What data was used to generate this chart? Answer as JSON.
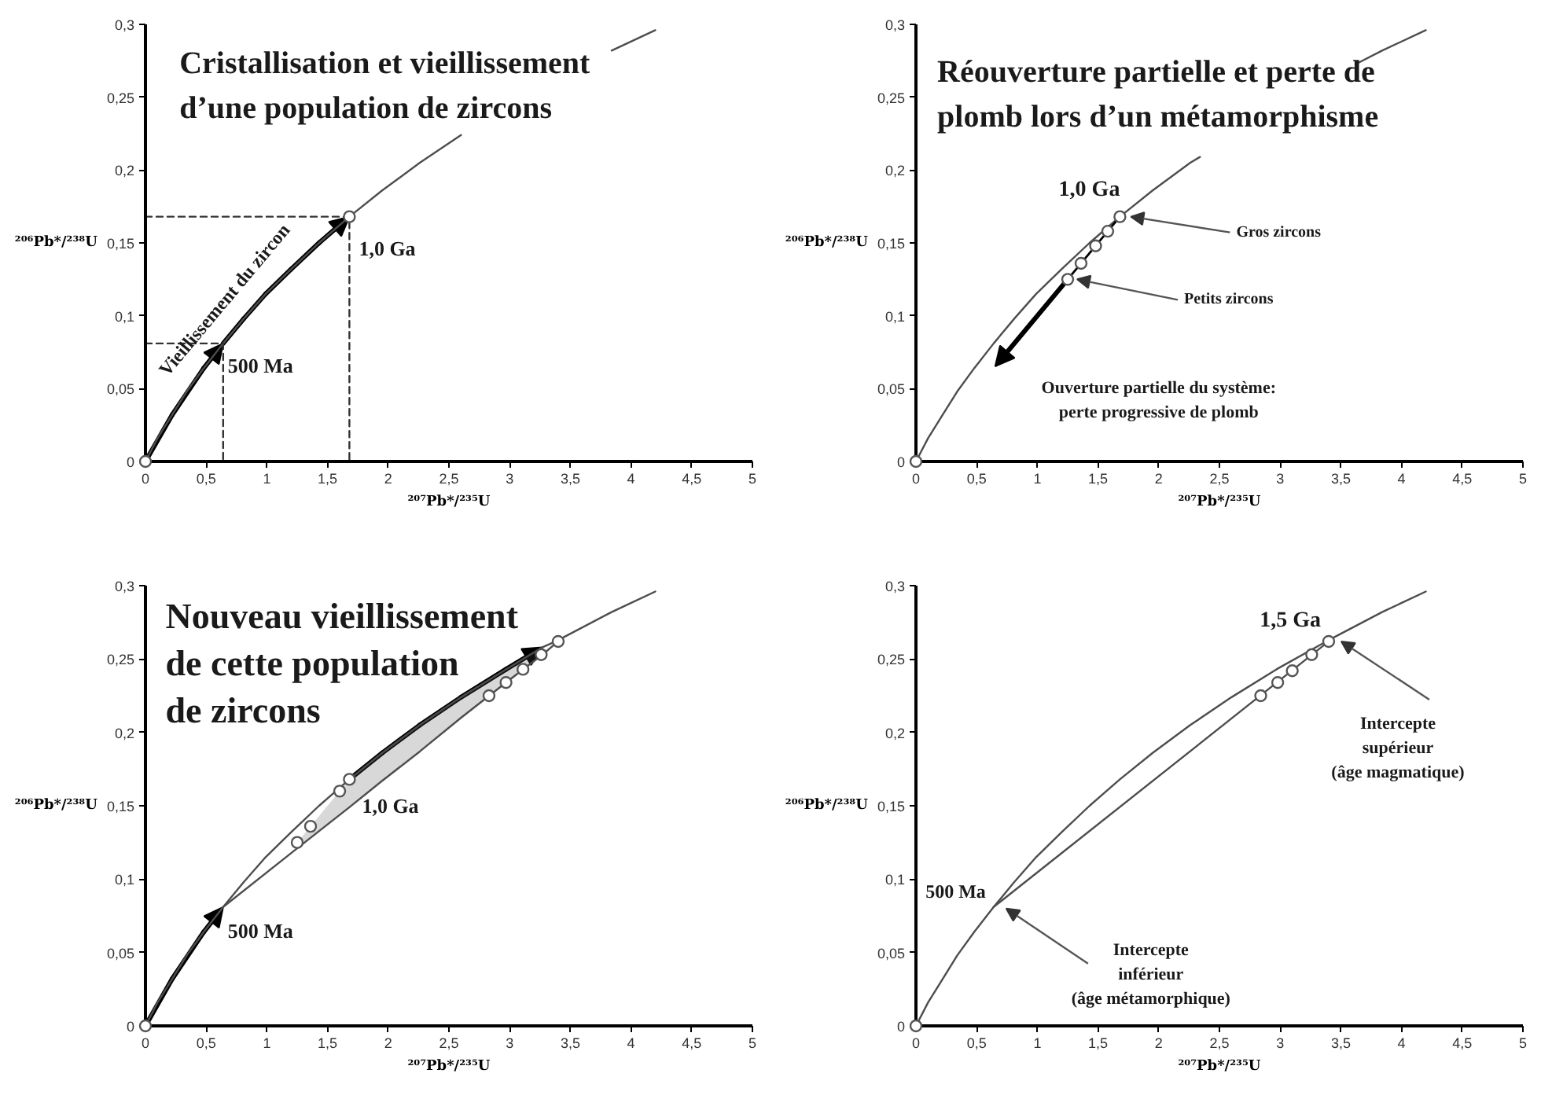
{
  "chart_data": [
    {
      "type": "line",
      "title": "Cristallisation et vieillissement\nd’une population de zircons",
      "xlabel": "²⁰⁷Pb*/²³⁵U",
      "ylabel": "²⁰⁶Pb*/²³⁸U",
      "xlim": [
        0,
        5
      ],
      "ylim": [
        0,
        0.3
      ],
      "xticks": [
        0,
        {
          "value": 0.5,
          "label": "0,5"
        },
        1,
        {
          "value": 1.5,
          "label": "1,5"
        },
        2,
        {
          "value": 2.5,
          "label": "2,5"
        },
        3,
        {
          "value": 3.5,
          "label": "3,5"
        },
        4,
        {
          "value": 4.5,
          "label": "4,5"
        },
        5
      ],
      "yticks": [
        0,
        {
          "value": 0.05,
          "label": "0,05"
        },
        {
          "value": 0.1,
          "label": "0,1"
        },
        {
          "value": 0.15,
          "label": "0,15"
        },
        {
          "value": 0.2,
          "label": "0,2"
        },
        {
          "value": 0.25,
          "label": "0,25"
        },
        {
          "value": 0.3,
          "label": "0,3"
        }
      ],
      "series": [
        {
          "color": "#4d4d4d",
          "x": [
            0,
            0.1,
            0.22,
            0.34,
            0.48,
            0.64,
            0.81,
            0.99,
            1.2,
            1.43,
            1.68,
            1.95,
            2.26,
            2.6,
            2.97,
            3.38,
            3.84,
            4.2
          ],
          "values": [
            0,
            0.016,
            0.032,
            0.048,
            0.064,
            0.081,
            0.098,
            0.115,
            0.132,
            0.15,
            0.168,
            0.186,
            0.205,
            0.224,
            null,
            null,
            0.282,
            0.296
          ]
        },
        {
          "color": "#333333",
          "line_style": "dashed",
          "x": [
            0,
            0.64,
            0.64
          ],
          "values": [
            0.081,
            0.081,
            0
          ]
        },
        {
          "color": "#333333",
          "line_style": "dashed",
          "x": [
            0,
            1.68,
            1.68
          ],
          "values": [
            0.168,
            0.168,
            0
          ]
        },
        {
          "type": "scatter",
          "marker": "circle",
          "color": "#555555",
          "x": [
            0,
            1.68
          ],
          "values": [
            0,
            0.168
          ]
        }
      ],
      "annotations": [
        {
          "text": "500 Ma",
          "x": 0.64,
          "y": 0.081
        },
        {
          "text": "1,0 Ga",
          "x": 1.68,
          "y": 0.168
        },
        "Vieillissement du zircon"
      ]
    },
    {
      "type": "line",
      "title": "Réouverture partielle et perte de\nplomb lors d’un métamorphisme",
      "xlabel": "²⁰⁷Pb*/²³⁵U",
      "ylabel": "²⁰⁶Pb*/²³⁸U",
      "xlim": [
        0,
        5
      ],
      "ylim": [
        0,
        0.3
      ],
      "xticks": [
        0,
        {
          "value": 0.5,
          "label": "0,5"
        },
        1,
        {
          "value": 1.5,
          "label": "1,5"
        },
        2,
        {
          "value": 2.5,
          "label": "2,5"
        },
        3,
        {
          "value": 3.5,
          "label": "3,5"
        },
        4,
        {
          "value": 4.5,
          "label": "4,5"
        },
        5
      ],
      "yticks": [
        0,
        {
          "value": 0.05,
          "label": "0,05"
        },
        {
          "value": 0.1,
          "label": "0,1"
        },
        {
          "value": 0.15,
          "label": "0,15"
        },
        {
          "value": 0.2,
          "label": "0,2"
        },
        {
          "value": 0.25,
          "label": "0,25"
        },
        {
          "value": 0.3,
          "label": "0,3"
        }
      ],
      "series": [
        {
          "color": "#4d4d4d",
          "x": [
            0,
            0.1,
            0.22,
            0.34,
            0.48,
            0.64,
            0.81,
            0.99,
            1.2,
            1.43,
            1.68,
            1.95,
            2.26,
            2.34,
            2.6,
            2.97,
            3.38,
            3.63,
            3.84,
            4.2
          ],
          "values": [
            0,
            0.016,
            0.032,
            0.048,
            0.064,
            0.081,
            0.098,
            0.115,
            0.132,
            0.15,
            0.168,
            0.186,
            0.205,
            0.209,
            null,
            null,
            null,
            0.273,
            0.282,
            0.296
          ]
        },
        {
          "color": "#000000",
          "x": [
            1.68,
            1.25
          ],
          "values": [
            0.168,
            0.125
          ]
        },
        {
          "type": "scatter",
          "marker": "circle",
          "color": "#555555",
          "x": [
            0,
            1.68,
            1.58,
            1.48,
            1.36,
            1.25
          ],
          "values": [
            0,
            0.168,
            0.158,
            0.148,
            0.136,
            0.125
          ]
        }
      ],
      "annotations": [
        {
          "text": "1,0 Ga",
          "x": 1.68,
          "y": 0.168
        },
        {
          "text": "Gros zircons",
          "x": 1.68,
          "y": 0.168
        },
        {
          "text": "Petits zircons",
          "x": 1.25,
          "y": 0.125
        },
        "Ouverture partielle du système:\nperte progressive de plomb"
      ]
    },
    {
      "type": "line",
      "title": "Nouveau vieillissement\nde cette population\nde zircons",
      "xlabel": "²⁰⁷Pb*/²³⁵U",
      "ylabel": "²⁰⁶Pb*/²³⁸U",
      "xlim": [
        0,
        5
      ],
      "ylim": [
        0,
        0.3
      ],
      "xticks": [
        0,
        {
          "value": 0.5,
          "label": "0,5"
        },
        1,
        {
          "value": 1.5,
          "label": "1,5"
        },
        2,
        {
          "value": 2.5,
          "label": "2,5"
        },
        3,
        {
          "value": 3.5,
          "label": "3,5"
        },
        4,
        {
          "value": 4.5,
          "label": "4,5"
        },
        5
      ],
      "yticks": [
        0,
        {
          "value": 0.05,
          "label": "0,05"
        },
        {
          "value": 0.1,
          "label": "0,1"
        },
        {
          "value": 0.15,
          "label": "0,15"
        },
        {
          "value": 0.2,
          "label": "0,2"
        },
        {
          "value": 0.25,
          "label": "0,25"
        },
        {
          "value": 0.3,
          "label": "0,3"
        }
      ],
      "series": [
        {
          "color": "#4d4d4d",
          "x": [
            0,
            0.1,
            0.22,
            0.34,
            0.48,
            0.64,
            0.81,
            0.99,
            1.2,
            1.43,
            1.68,
            1.95,
            2.26,
            2.6,
            2.97,
            3.27,
            3.38,
            3.84,
            4.2
          ],
          "values": [
            0,
            0.016,
            0.032,
            0.048,
            0.064,
            0.081,
            0.098,
            0.115,
            0.132,
            0.15,
            0.168,
            0.186,
            0.205,
            0.224,
            0.243,
            0.258,
            0.262,
            0.282,
            0.296
          ]
        },
        {
          "color": "#4d4d4d",
          "x": [
            0.64,
            1.25,
            1.68,
            1.95,
            2.26,
            2.6,
            2.97,
            3.27,
            3.4
          ],
          "values": [
            0.081,
            0.121,
            0.149,
            0.167,
            0.187,
            0.21,
            0.234,
            0.253,
            0.262
          ],
          "lower": [
            null,
            0.121,
            0.149,
            0.167,
            0.187,
            0.21,
            0.234,
            0.253,
            null
          ],
          "upper": [
            null,
            0.125,
            0.168,
            0.186,
            0.205,
            0.224,
            0.243,
            0.258,
            null
          ]
        },
        {
          "type": "scatter",
          "marker": "circle",
          "color": "#555555",
          "x": [
            0,
            1.25,
            1.36,
            1.6,
            1.68,
            2.83,
            2.97,
            3.11,
            3.26,
            3.4
          ],
          "values": [
            0,
            0.125,
            0.136,
            0.16,
            0.168,
            0.225,
            0.234,
            0.243,
            0.253,
            0.262
          ]
        }
      ],
      "annotations": [
        {
          "text": "1,0 Ga",
          "x": 1.68,
          "y": 0.168
        },
        {
          "text": "500 Ma",
          "x": 0.64,
          "y": 0.081
        }
      ]
    },
    {
      "type": "line",
      "xlabel": "²⁰⁷Pb*/²³⁵U",
      "ylabel": "²⁰⁶Pb*/²³⁸U",
      "xlim": [
        0,
        5
      ],
      "ylim": [
        0,
        0.3
      ],
      "xticks": [
        0,
        {
          "value": 0.5,
          "label": "0,5"
        },
        1,
        {
          "value": 1.5,
          "label": "1,5"
        },
        2,
        {
          "value": 2.5,
          "label": "2,5"
        },
        3,
        {
          "value": 3.5,
          "label": "3,5"
        },
        4,
        {
          "value": 4.5,
          "label": "4,5"
        },
        5
      ],
      "yticks": [
        0,
        {
          "value": 0.05,
          "label": "0,05"
        },
        {
          "value": 0.1,
          "label": "0,1"
        },
        {
          "value": 0.15,
          "label": "0,15"
        },
        {
          "value": 0.2,
          "label": "0,2"
        },
        {
          "value": 0.25,
          "label": "0,25"
        },
        {
          "value": 0.3,
          "label": "0,3"
        }
      ],
      "series": [
        {
          "color": "#4d4d4d",
          "x": [
            0,
            0.1,
            0.22,
            0.34,
            0.48,
            0.64,
            0.81,
            0.99,
            1.2,
            1.43,
            1.68,
            1.95,
            2.26,
            2.6,
            2.97,
            3.38,
            3.84,
            4.2
          ],
          "values": [
            0,
            0.016,
            0.032,
            0.048,
            0.064,
            0.081,
            0.098,
            0.115,
            0.132,
            0.15,
            0.168,
            0.186,
            0.205,
            0.224,
            0.243,
            0.262,
            0.282,
            0.296
          ]
        },
        {
          "color": "#4d4d4d",
          "x": [
            0.64,
            3.4
          ],
          "values": [
            0.081,
            0.262
          ]
        },
        {
          "type": "scatter",
          "marker": "circle",
          "color": "#555555",
          "x": [
            0,
            2.84,
            2.98,
            3.1,
            3.26,
            3.4
          ],
          "values": [
            0,
            0.225,
            0.234,
            0.242,
            0.253,
            0.262
          ]
        }
      ],
      "annotations": [
        {
          "text": "1,5 Ga",
          "x": 3.4,
          "y": 0.262
        },
        {
          "text": "500 Ma",
          "x": 0.64,
          "y": 0.081
        },
        {
          "text": "Intercepte\nsupérieur\n(âge magmatique)",
          "x": 3.4,
          "y": 0.262
        },
        {
          "text": "Intercepte\ninférieur\n(âge métamorphique)",
          "x": 0.64,
          "y": 0.081
        }
      ]
    }
  ]
}
